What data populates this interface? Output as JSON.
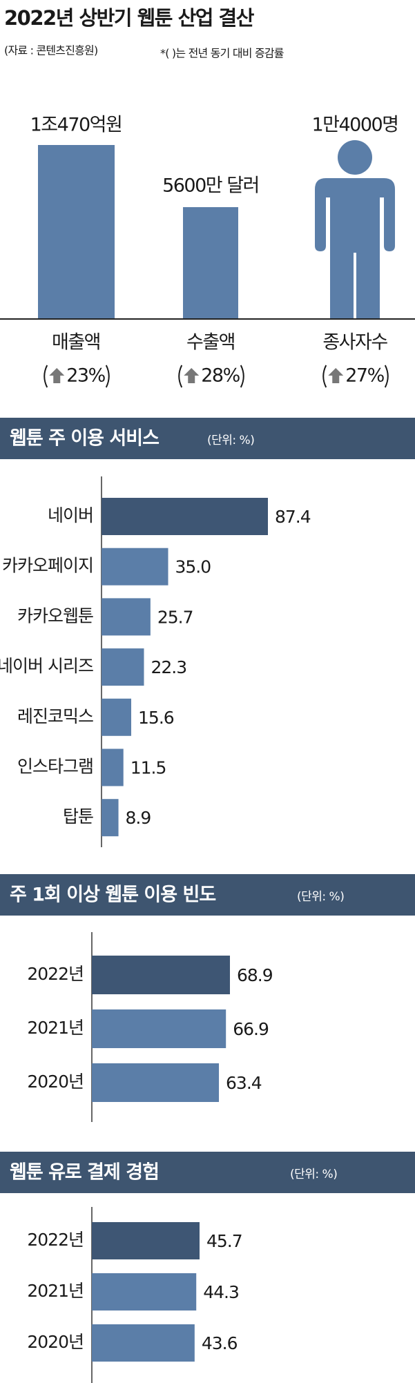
{
  "title": "2022년 상반기 웹툰 산업 결산",
  "source": "(자료 : 콘텐츠진흥원)",
  "note": "*(   )는 전년 동기 대비 증감률",
  "summary": [
    {
      "amount": "1조470억원",
      "label": "매출액",
      "change": "23%"
    },
    {
      "amount": "5600만 달러",
      "label": "수출액",
      "change": "28%"
    },
    {
      "amount": "1만4000명",
      "label": "종사자수",
      "change": "27%"
    }
  ],
  "chart_data": [
    {
      "type": "bar",
      "orientation": "horizontal",
      "title": "웹툰 주 이용 서비스",
      "unit": "(단위: %)",
      "categories": [
        "네이버",
        "카카오페이지",
        "카카오웹툰",
        "네이버 시리즈",
        "레진코믹스",
        "인스타그램",
        "탑툰"
      ],
      "values": [
        87.4,
        35.0,
        25.7,
        22.3,
        15.6,
        11.5,
        8.9
      ],
      "value_labels": [
        "87.4",
        "35.0",
        "25.7",
        "22.3",
        "15.6",
        "11.5",
        "8.9"
      ],
      "colors": [
        "#3e5674",
        "#5b7ea8",
        "#5b7ea8",
        "#5b7ea8",
        "#5b7ea8",
        "#5b7ea8",
        "#5b7ea8"
      ]
    },
    {
      "type": "bar",
      "orientation": "horizontal",
      "title": "주 1회 이상 웹툰 이용 빈도",
      "unit": "(단위: %)",
      "categories": [
        "2022년",
        "2021년",
        "2020년"
      ],
      "values": [
        68.9,
        66.9,
        63.4
      ],
      "colors": [
        "#3e5674",
        "#5b7ea8",
        "#5b7ea8"
      ]
    },
    {
      "type": "bar",
      "orientation": "horizontal",
      "title": "웹툰 유로 결제 경험",
      "unit": "(단위: %)",
      "categories": [
        "2022년",
        "2021년",
        "2020년"
      ],
      "values": [
        45.7,
        44.3,
        43.6
      ],
      "colors": [
        "#3e5674",
        "#5b7ea8",
        "#5b7ea8"
      ]
    }
  ]
}
